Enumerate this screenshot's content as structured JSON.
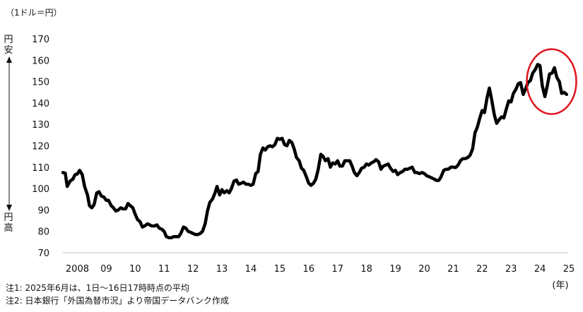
{
  "chart_data": {
    "type": "line",
    "unit_label": "（1ドル＝円）",
    "up_label": "円安",
    "down_label": "円高",
    "x_unit_label": "(年)",
    "ylim": [
      70,
      170
    ],
    "yticks": [
      70,
      80,
      90,
      100,
      110,
      120,
      130,
      140,
      150,
      160,
      170
    ],
    "xlim": [
      2008.0,
      2025.45
    ],
    "xticks": [
      {
        "value": 2008.5,
        "label": "2008"
      },
      {
        "value": 2009.5,
        "label": "09"
      },
      {
        "value": 2010.5,
        "label": "10"
      },
      {
        "value": 2011.5,
        "label": "11"
      },
      {
        "value": 2012.5,
        "label": "12"
      },
      {
        "value": 2013.5,
        "label": "13"
      },
      {
        "value": 2014.5,
        "label": "14"
      },
      {
        "value": 2015.5,
        "label": "15"
      },
      {
        "value": 2016.5,
        "label": "16"
      },
      {
        "value": 2017.5,
        "label": "17"
      },
      {
        "value": 2018.5,
        "label": "18"
      },
      {
        "value": 2019.5,
        "label": "19"
      },
      {
        "value": 2020.5,
        "label": "20"
      },
      {
        "value": 2021.5,
        "label": "21"
      },
      {
        "value": 2022.5,
        "label": "22"
      },
      {
        "value": 2023.5,
        "label": "23"
      },
      {
        "value": 2024.5,
        "label": "24"
      },
      {
        "value": 2025.5,
        "label": "25"
      }
    ],
    "grid": false,
    "highlight": {
      "x_center": 2024.9,
      "y_center": 150,
      "color": "#e0141e"
    },
    "series": [
      {
        "color": "#000000",
        "points": [
          [
            2008.0,
            107.5
          ],
          [
            2008.08,
            107.2
          ],
          [
            2008.15,
            101.0
          ],
          [
            2008.25,
            103.5
          ],
          [
            2008.35,
            104.5
          ],
          [
            2008.42,
            106.5
          ],
          [
            2008.5,
            106.8
          ],
          [
            2008.58,
            108.5
          ],
          [
            2008.67,
            106.5
          ],
          [
            2008.75,
            101.0
          ],
          [
            2008.85,
            97.0
          ],
          [
            2008.92,
            92.0
          ],
          [
            2009.0,
            91.0
          ],
          [
            2009.08,
            92.5
          ],
          [
            2009.17,
            98.0
          ],
          [
            2009.25,
            98.5
          ],
          [
            2009.33,
            96.5
          ],
          [
            2009.42,
            96.0
          ],
          [
            2009.5,
            94.5
          ],
          [
            2009.58,
            94.5
          ],
          [
            2009.67,
            92.0
          ],
          [
            2009.75,
            91.0
          ],
          [
            2009.83,
            89.5
          ],
          [
            2009.92,
            90.0
          ],
          [
            2010.0,
            91.0
          ],
          [
            2010.08,
            90.5
          ],
          [
            2010.17,
            90.5
          ],
          [
            2010.25,
            93.0
          ],
          [
            2010.33,
            92.0
          ],
          [
            2010.42,
            91.0
          ],
          [
            2010.5,
            88.0
          ],
          [
            2010.58,
            85.5
          ],
          [
            2010.67,
            84.5
          ],
          [
            2010.75,
            82.0
          ],
          [
            2010.83,
            82.5
          ],
          [
            2010.92,
            83.5
          ],
          [
            2011.0,
            83.0
          ],
          [
            2011.08,
            82.5
          ],
          [
            2011.17,
            82.5
          ],
          [
            2011.25,
            83.0
          ],
          [
            2011.33,
            81.5
          ],
          [
            2011.42,
            81.0
          ],
          [
            2011.5,
            80.0
          ],
          [
            2011.58,
            77.5
          ],
          [
            2011.67,
            77.0
          ],
          [
            2011.75,
            77.0
          ],
          [
            2011.83,
            77.5
          ],
          [
            2011.92,
            77.5
          ],
          [
            2012.0,
            77.5
          ],
          [
            2012.08,
            79.0
          ],
          [
            2012.17,
            82.0
          ],
          [
            2012.25,
            81.5
          ],
          [
            2012.33,
            80.0
          ],
          [
            2012.42,
            79.5
          ],
          [
            2012.5,
            79.0
          ],
          [
            2012.58,
            78.5
          ],
          [
            2012.67,
            78.5
          ],
          [
            2012.75,
            79.0
          ],
          [
            2012.83,
            80.0
          ],
          [
            2012.92,
            83.5
          ],
          [
            2013.0,
            89.5
          ],
          [
            2013.08,
            93.5
          ],
          [
            2013.17,
            95.0
          ],
          [
            2013.25,
            97.5
          ],
          [
            2013.33,
            101.0
          ],
          [
            2013.42,
            97.0
          ],
          [
            2013.5,
            99.5
          ],
          [
            2013.58,
            98.0
          ],
          [
            2013.67,
            99.0
          ],
          [
            2013.75,
            98.0
          ],
          [
            2013.83,
            100.0
          ],
          [
            2013.92,
            103.5
          ],
          [
            2014.0,
            104.0
          ],
          [
            2014.08,
            102.0
          ],
          [
            2014.17,
            102.5
          ],
          [
            2014.25,
            103.0
          ],
          [
            2014.33,
            102.0
          ],
          [
            2014.42,
            102.0
          ],
          [
            2014.5,
            101.5
          ],
          [
            2014.58,
            102.0
          ],
          [
            2014.67,
            107.0
          ],
          [
            2014.75,
            108.0
          ],
          [
            2014.83,
            116.0
          ],
          [
            2014.92,
            119.0
          ],
          [
            2015.0,
            118.0
          ],
          [
            2015.08,
            119.5
          ],
          [
            2015.17,
            120.0
          ],
          [
            2015.25,
            119.5
          ],
          [
            2015.33,
            120.5
          ],
          [
            2015.42,
            123.5
          ],
          [
            2015.5,
            123.0
          ],
          [
            2015.58,
            123.5
          ],
          [
            2015.67,
            120.5
          ],
          [
            2015.75,
            120.0
          ],
          [
            2015.83,
            122.5
          ],
          [
            2015.92,
            121.5
          ],
          [
            2016.0,
            118.5
          ],
          [
            2016.08,
            114.5
          ],
          [
            2016.17,
            113.0
          ],
          [
            2016.25,
            109.5
          ],
          [
            2016.33,
            108.5
          ],
          [
            2016.42,
            105.5
          ],
          [
            2016.5,
            102.5
          ],
          [
            2016.58,
            101.5
          ],
          [
            2016.67,
            102.5
          ],
          [
            2016.75,
            104.5
          ],
          [
            2016.83,
            109.0
          ],
          [
            2016.92,
            116.0
          ],
          [
            2017.0,
            115.0
          ],
          [
            2017.08,
            113.0
          ],
          [
            2017.17,
            114.0
          ],
          [
            2017.25,
            110.0
          ],
          [
            2017.33,
            112.0
          ],
          [
            2017.42,
            111.5
          ],
          [
            2017.5,
            113.0
          ],
          [
            2017.58,
            110.5
          ],
          [
            2017.67,
            110.5
          ],
          [
            2017.75,
            113.0
          ],
          [
            2017.83,
            113.0
          ],
          [
            2017.92,
            113.0
          ],
          [
            2018.0,
            110.5
          ],
          [
            2018.08,
            107.5
          ],
          [
            2018.17,
            106.0
          ],
          [
            2018.25,
            107.5
          ],
          [
            2018.33,
            109.5
          ],
          [
            2018.42,
            110.0
          ],
          [
            2018.5,
            111.5
          ],
          [
            2018.58,
            111.0
          ],
          [
            2018.67,
            112.0
          ],
          [
            2018.75,
            112.5
          ],
          [
            2018.83,
            113.5
          ],
          [
            2018.92,
            112.5
          ],
          [
            2019.0,
            109.0
          ],
          [
            2019.08,
            110.5
          ],
          [
            2019.17,
            111.0
          ],
          [
            2019.25,
            111.5
          ],
          [
            2019.33,
            109.5
          ],
          [
            2019.42,
            108.0
          ],
          [
            2019.5,
            108.5
          ],
          [
            2019.58,
            106.5
          ],
          [
            2019.67,
            107.5
          ],
          [
            2019.75,
            108.0
          ],
          [
            2019.83,
            109.0
          ],
          [
            2019.92,
            109.0
          ],
          [
            2020.0,
            109.5
          ],
          [
            2020.08,
            110.0
          ],
          [
            2020.17,
            107.5
          ],
          [
            2020.25,
            107.5
          ],
          [
            2020.33,
            107.0
          ],
          [
            2020.42,
            107.5
          ],
          [
            2020.5,
            107.0
          ],
          [
            2020.58,
            106.0
          ],
          [
            2020.67,
            105.5
          ],
          [
            2020.75,
            105.0
          ],
          [
            2020.83,
            104.5
          ],
          [
            2020.92,
            103.8
          ],
          [
            2021.0,
            103.8
          ],
          [
            2021.08,
            105.5
          ],
          [
            2021.17,
            108.5
          ],
          [
            2021.25,
            109.0
          ],
          [
            2021.33,
            109.0
          ],
          [
            2021.42,
            110.0
          ],
          [
            2021.5,
            110.0
          ],
          [
            2021.58,
            109.8
          ],
          [
            2021.67,
            111.0
          ],
          [
            2021.75,
            113.0
          ],
          [
            2021.83,
            114.0
          ],
          [
            2021.92,
            114.0
          ],
          [
            2022.0,
            114.5
          ],
          [
            2022.08,
            115.5
          ],
          [
            2022.17,
            118.5
          ],
          [
            2022.25,
            126.0
          ],
          [
            2022.33,
            128.5
          ],
          [
            2022.42,
            133.0
          ],
          [
            2022.5,
            136.5
          ],
          [
            2022.58,
            135.5
          ],
          [
            2022.67,
            142.5
          ],
          [
            2022.75,
            147.0
          ],
          [
            2022.83,
            141.5
          ],
          [
            2022.92,
            134.5
          ],
          [
            2023.0,
            130.5
          ],
          [
            2023.08,
            132.0
          ],
          [
            2023.17,
            133.5
          ],
          [
            2023.25,
            133.0
          ],
          [
            2023.33,
            137.0
          ],
          [
            2023.42,
            141.0
          ],
          [
            2023.5,
            140.5
          ],
          [
            2023.58,
            144.5
          ],
          [
            2023.67,
            146.5
          ],
          [
            2023.75,
            149.0
          ],
          [
            2023.83,
            149.5
          ],
          [
            2023.92,
            144.0
          ],
          [
            2024.0,
            146.5
          ],
          [
            2024.08,
            149.5
          ],
          [
            2024.17,
            150.5
          ],
          [
            2024.25,
            154.0
          ],
          [
            2024.33,
            155.5
          ],
          [
            2024.42,
            158.0
          ],
          [
            2024.5,
            157.5
          ],
          [
            2024.58,
            148.0
          ],
          [
            2024.67,
            143.0
          ],
          [
            2024.75,
            148.0
          ],
          [
            2024.83,
            153.5
          ],
          [
            2024.92,
            154.0
          ],
          [
            2025.0,
            156.5
          ],
          [
            2025.08,
            152.0
          ],
          [
            2025.17,
            150.0
          ],
          [
            2025.25,
            144.5
          ],
          [
            2025.33,
            145.0
          ],
          [
            2025.42,
            144.0
          ]
        ]
      }
    ]
  },
  "notes": [
    "注1: 2025年6月は、1日～16日17時時点の平均",
    "注2: 日本銀行「外国為替市況」より帝国データバンク作成"
  ]
}
